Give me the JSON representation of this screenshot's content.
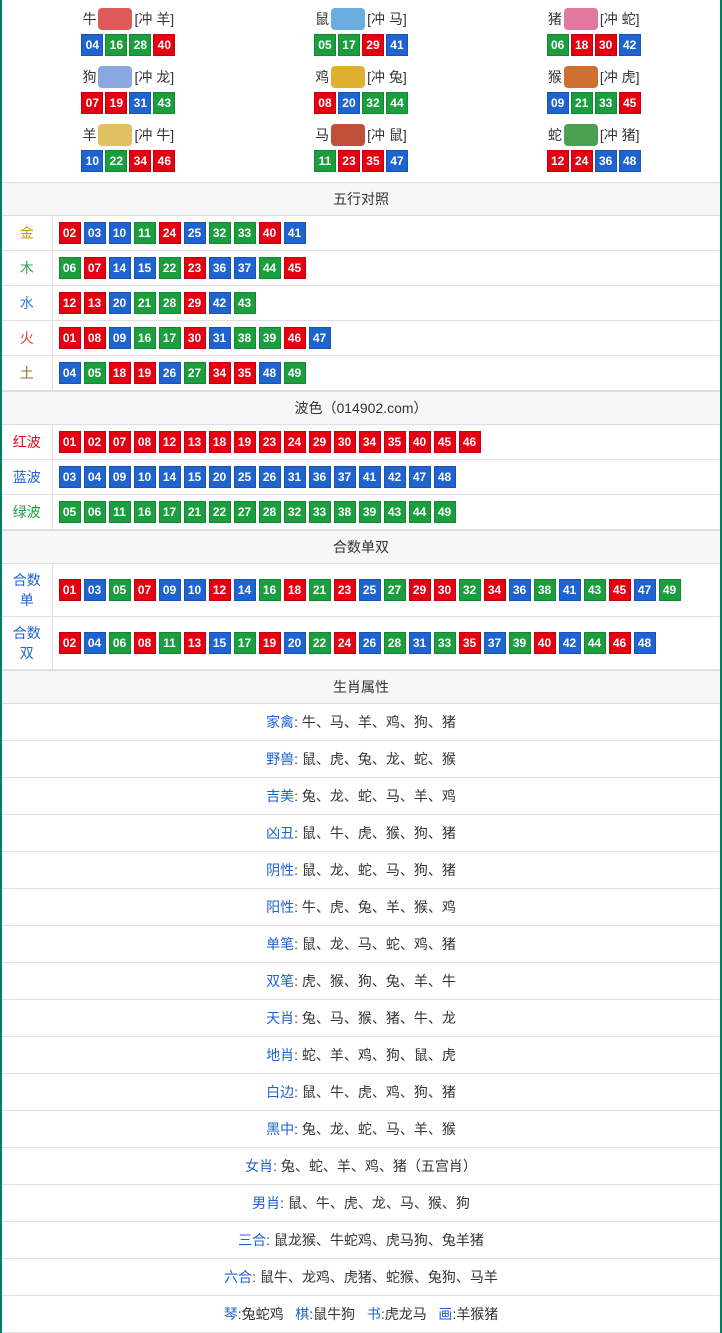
{
  "colors": {
    "red": "#e60012",
    "blue": "#1e63d0",
    "green": "#1a9e3e",
    "border": "#008060"
  },
  "ball_color_map": {
    "01": "red",
    "02": "red",
    "07": "red",
    "08": "red",
    "12": "red",
    "13": "red",
    "18": "red",
    "19": "red",
    "23": "red",
    "24": "red",
    "29": "red",
    "30": "red",
    "34": "red",
    "35": "red",
    "40": "red",
    "45": "red",
    "46": "red",
    "03": "blue",
    "04": "blue",
    "09": "blue",
    "10": "blue",
    "14": "blue",
    "15": "blue",
    "20": "blue",
    "25": "blue",
    "26": "blue",
    "31": "blue",
    "36": "blue",
    "37": "blue",
    "41": "blue",
    "42": "blue",
    "47": "blue",
    "48": "blue",
    "05": "green",
    "06": "green",
    "11": "green",
    "16": "green",
    "17": "green",
    "21": "green",
    "22": "green",
    "27": "green",
    "28": "green",
    "32": "green",
    "33": "green",
    "38": "green",
    "39": "green",
    "43": "green",
    "44": "green",
    "49": "green"
  },
  "zodiac": [
    {
      "name": "牛",
      "chong": "[冲 羊]",
      "icon": "#e05a5a",
      "balls": [
        "04",
        "16",
        "28",
        "40"
      ]
    },
    {
      "name": "鼠",
      "chong": "[冲 马]",
      "icon": "#6aaee0",
      "balls": [
        "05",
        "17",
        "29",
        "41"
      ]
    },
    {
      "name": "猪",
      "chong": "[冲 蛇]",
      "icon": "#e078a0",
      "balls": [
        "06",
        "18",
        "30",
        "42"
      ]
    },
    {
      "name": "狗",
      "chong": "[冲 龙]",
      "icon": "#8aa7e0",
      "balls": [
        "07",
        "19",
        "31",
        "43"
      ]
    },
    {
      "name": "鸡",
      "chong": "[冲 兔]",
      "icon": "#e0b030",
      "balls": [
        "08",
        "20",
        "32",
        "44"
      ]
    },
    {
      "name": "猴",
      "chong": "[冲 虎]",
      "icon": "#d07030",
      "balls": [
        "09",
        "21",
        "33",
        "45"
      ]
    },
    {
      "name": "羊",
      "chong": "[冲 牛]",
      "icon": "#e0c060",
      "balls": [
        "10",
        "22",
        "34",
        "46"
      ]
    },
    {
      "name": "马",
      "chong": "[冲 鼠]",
      "icon": "#c0503a",
      "balls": [
        "11",
        "23",
        "35",
        "47"
      ]
    },
    {
      "name": "蛇",
      "chong": "[冲 猪]",
      "icon": "#4aa050",
      "balls": [
        "12",
        "24",
        "36",
        "48"
      ]
    }
  ],
  "wuxing": {
    "title": "五行对照",
    "rows": [
      {
        "label": "金",
        "cls": "gold",
        "balls": [
          "02",
          "03",
          "10",
          "11",
          "24",
          "25",
          "32",
          "33",
          "40",
          "41"
        ]
      },
      {
        "label": "木",
        "cls": "wood",
        "balls": [
          "06",
          "07",
          "14",
          "15",
          "22",
          "23",
          "36",
          "37",
          "44",
          "45"
        ]
      },
      {
        "label": "水",
        "cls": "water",
        "balls": [
          "12",
          "13",
          "20",
          "21",
          "28",
          "29",
          "42",
          "43"
        ]
      },
      {
        "label": "火",
        "cls": "fire",
        "balls": [
          "01",
          "08",
          "09",
          "16",
          "17",
          "30",
          "31",
          "38",
          "39",
          "46",
          "47"
        ]
      },
      {
        "label": "土",
        "cls": "earth",
        "balls": [
          "04",
          "05",
          "18",
          "19",
          "26",
          "27",
          "34",
          "35",
          "48",
          "49"
        ]
      }
    ]
  },
  "bose": {
    "title": "波色（014902.com）",
    "rows": [
      {
        "label": "红波",
        "cls": "cred",
        "balls": [
          "01",
          "02",
          "07",
          "08",
          "12",
          "13",
          "18",
          "19",
          "23",
          "24",
          "29",
          "30",
          "34",
          "35",
          "40",
          "45",
          "46"
        ]
      },
      {
        "label": "蓝波",
        "cls": "cblue",
        "balls": [
          "03",
          "04",
          "09",
          "10",
          "14",
          "15",
          "20",
          "25",
          "26",
          "31",
          "36",
          "37",
          "41",
          "42",
          "47",
          "48"
        ]
      },
      {
        "label": "绿波",
        "cls": "cgreen",
        "balls": [
          "05",
          "06",
          "11",
          "16",
          "17",
          "21",
          "22",
          "27",
          "28",
          "32",
          "33",
          "38",
          "39",
          "43",
          "44",
          "49"
        ]
      }
    ]
  },
  "heshu": {
    "title": "合数单双",
    "rows": [
      {
        "label": "合数单",
        "cls": "cblue",
        "balls": [
          "01",
          "03",
          "05",
          "07",
          "09",
          "10",
          "12",
          "14",
          "16",
          "18",
          "21",
          "23",
          "25",
          "27",
          "29",
          "30",
          "32",
          "34",
          "36",
          "38",
          "41",
          "43",
          "45",
          "47",
          "49"
        ]
      },
      {
        "label": "合数双",
        "cls": "cblue",
        "balls": [
          "02",
          "04",
          "06",
          "08",
          "11",
          "13",
          "15",
          "17",
          "19",
          "20",
          "22",
          "24",
          "26",
          "28",
          "31",
          "33",
          "35",
          "37",
          "39",
          "40",
          "42",
          "44",
          "46",
          "48"
        ]
      }
    ]
  },
  "attrs": {
    "title": "生肖属性",
    "rows": [
      {
        "k": "家禽",
        "v": "牛、马、羊、鸡、狗、猪"
      },
      {
        "k": "野兽",
        "v": "鼠、虎、兔、龙、蛇、猴"
      },
      {
        "k": "吉美",
        "v": "兔、龙、蛇、马、羊、鸡"
      },
      {
        "k": "凶丑",
        "v": "鼠、牛、虎、猴、狗、猪"
      },
      {
        "k": "阴性",
        "v": "鼠、龙、蛇、马、狗、猪"
      },
      {
        "k": "阳性",
        "v": "牛、虎、兔、羊、猴、鸡"
      },
      {
        "k": "单笔",
        "v": "鼠、龙、马、蛇、鸡、猪"
      },
      {
        "k": "双笔",
        "v": "虎、猴、狗、兔、羊、牛"
      },
      {
        "k": "天肖",
        "v": "兔、马、猴、猪、牛、龙"
      },
      {
        "k": "地肖",
        "v": "蛇、羊、鸡、狗、鼠、虎"
      },
      {
        "k": "白边",
        "v": "鼠、牛、虎、鸡、狗、猪"
      },
      {
        "k": "黑中",
        "v": "兔、龙、蛇、马、羊、猴"
      },
      {
        "k": "女肖",
        "v": "兔、蛇、羊、鸡、猪（五宫肖）"
      },
      {
        "k": "男肖",
        "v": "鼠、牛、虎、龙、马、猴、狗"
      },
      {
        "k": "三合",
        "v": "鼠龙猴、牛蛇鸡、虎马狗、兔羊猪"
      },
      {
        "k": "六合",
        "v": "鼠牛、龙鸡、虎猪、蛇猴、兔狗、马羊"
      }
    ],
    "footer": [
      {
        "k": "琴",
        "v": "兔蛇鸡"
      },
      {
        "k": "棋",
        "v": "鼠牛狗"
      },
      {
        "k": "书",
        "v": "虎龙马"
      },
      {
        "k": "画",
        "v": "羊猴猪"
      }
    ]
  }
}
